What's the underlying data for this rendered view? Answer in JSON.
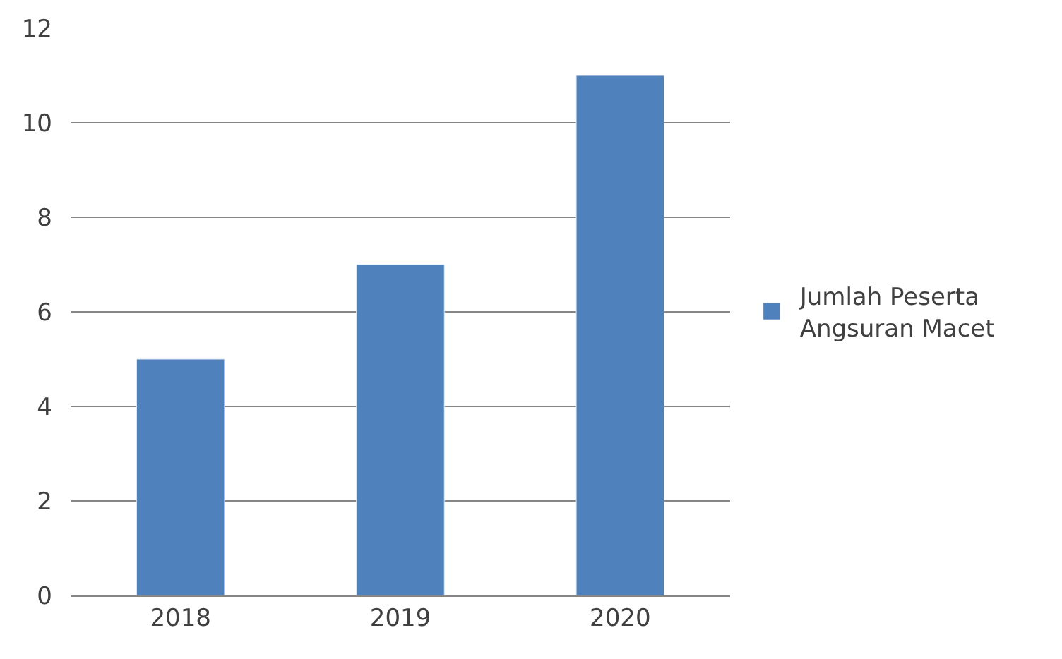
{
  "chart_data": {
    "type": "bar",
    "categories": [
      "2018",
      "2019",
      "2020"
    ],
    "series": [
      {
        "name": "Jumlah Peserta Angsuran Macet",
        "color": "#4f81bd",
        "values": [
          5,
          7,
          11
        ]
      }
    ],
    "ylim": [
      0,
      12
    ],
    "yticks": [
      0,
      2,
      4,
      6,
      8,
      10,
      12
    ],
    "grid": "y",
    "legend": "right"
  }
}
